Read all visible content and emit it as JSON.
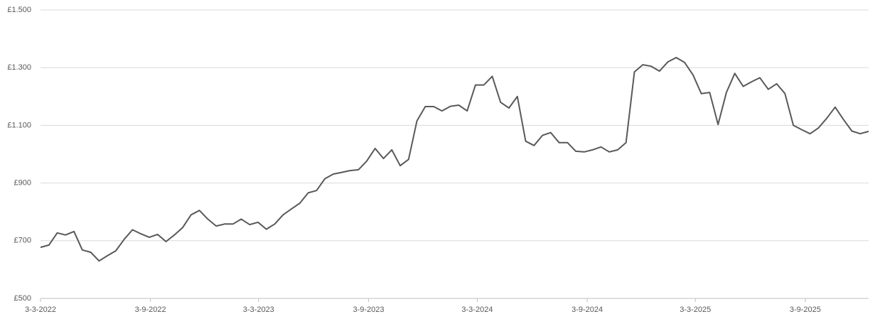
{
  "chart_data": {
    "type": "line",
    "color": "#595959",
    "grid": true,
    "xlim": [
      "2022-03-03",
      "2025-12-18"
    ],
    "xticks": [
      {
        "value": "2022-03-03",
        "label": "3-3-2022"
      },
      {
        "value": "2022-09-03",
        "label": "3-9-2022"
      },
      {
        "value": "2023-03-03",
        "label": "3-3-2023"
      },
      {
        "value": "2023-09-03",
        "label": "3-9-2023"
      },
      {
        "value": "2024-03-03",
        "label": "3-3-2024"
      },
      {
        "value": "2024-09-03",
        "label": "3-9-2024"
      },
      {
        "value": "2025-03-03",
        "label": "3-3-2025"
      },
      {
        "value": "2025-09-03",
        "label": "3-9-2025"
      }
    ],
    "ylim": [
      500,
      1500
    ],
    "yticks": [
      {
        "value": 500,
        "label": "£500"
      },
      {
        "value": 700,
        "label": "£700"
      },
      {
        "value": 900,
        "label": "£900"
      },
      {
        "value": 1100,
        "label": "£1.100"
      },
      {
        "value": 1300,
        "label": "£1.300"
      },
      {
        "value": 1500,
        "label": "£1.500"
      }
    ],
    "x": [
      "2022-03-03",
      "2022-03-17",
      "2022-03-31",
      "2022-04-14",
      "2022-04-28",
      "2022-05-12",
      "2022-05-26",
      "2022-06-09",
      "2022-06-23",
      "2022-07-07",
      "2022-07-21",
      "2022-08-04",
      "2022-08-18",
      "2022-09-01",
      "2022-09-15",
      "2022-09-29",
      "2022-10-13",
      "2022-10-27",
      "2022-11-10",
      "2022-11-24",
      "2022-12-08",
      "2022-12-22",
      "2023-01-05",
      "2023-01-19",
      "2023-02-02",
      "2023-02-16",
      "2023-03-02",
      "2023-03-16",
      "2023-03-30",
      "2023-04-13",
      "2023-04-27",
      "2023-05-11",
      "2023-05-25",
      "2023-06-08",
      "2023-06-22",
      "2023-07-06",
      "2023-07-20",
      "2023-08-03",
      "2023-08-17",
      "2023-08-31",
      "2023-09-14",
      "2023-09-28",
      "2023-10-12",
      "2023-10-26",
      "2023-11-09",
      "2023-11-23",
      "2023-12-07",
      "2023-12-21",
      "2024-01-04",
      "2024-01-18",
      "2024-02-01",
      "2024-02-15",
      "2024-02-29",
      "2024-03-14",
      "2024-03-28",
      "2024-04-11",
      "2024-04-25",
      "2024-05-09",
      "2024-05-23",
      "2024-06-06",
      "2024-06-20",
      "2024-07-04",
      "2024-07-18",
      "2024-08-01",
      "2024-08-15",
      "2024-08-29",
      "2024-09-12",
      "2024-09-26",
      "2024-10-10",
      "2024-10-24",
      "2024-11-07",
      "2024-11-21",
      "2024-12-05",
      "2024-12-19",
      "2025-01-02",
      "2025-01-16",
      "2025-01-30",
      "2025-02-13",
      "2025-02-27",
      "2025-03-13",
      "2025-03-27",
      "2025-04-10",
      "2025-04-24",
      "2025-05-08",
      "2025-05-22",
      "2025-06-05",
      "2025-06-19",
      "2025-07-03",
      "2025-07-17",
      "2025-07-31",
      "2025-08-14",
      "2025-08-28",
      "2025-09-11",
      "2025-09-25",
      "2025-10-09",
      "2025-10-23",
      "2025-11-06",
      "2025-11-20",
      "2025-12-04",
      "2025-12-18"
    ],
    "values": [
      677,
      685,
      727,
      720,
      732,
      668,
      660,
      630,
      648,
      665,
      705,
      738,
      724,
      712,
      722,
      697,
      720,
      746,
      790,
      805,
      775,
      751,
      758,
      758,
      775,
      756,
      764,
      740,
      758,
      790,
      810,
      830,
      866,
      874,
      915,
      931,
      937,
      943,
      946,
      976,
      1020,
      985,
      1015,
      960,
      982,
      1115,
      1165,
      1165,
      1150,
      1166,
      1170,
      1150,
      1240,
      1240,
      1270,
      1180,
      1160,
      1200,
      1045,
      1030,
      1065,
      1075,
      1040,
      1040,
      1010,
      1008,
      1015,
      1025,
      1008,
      1015,
      1040,
      1285,
      1310,
      1305,
      1288,
      1320,
      1335,
      1318,
      1275,
      1210,
      1214,
      1103,
      1214,
      1280,
      1235,
      1251,
      1265,
      1225,
      1244,
      1210,
      1100,
      1085,
      1071,
      1091,
      1125,
      1163,
      1120,
      1080,
      1071,
      1079
    ]
  }
}
